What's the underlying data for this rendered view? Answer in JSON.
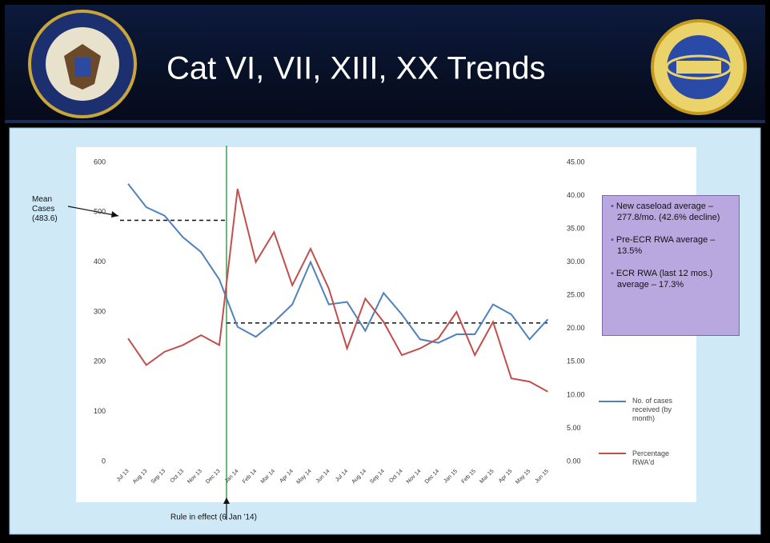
{
  "chart_data": {
    "type": "line",
    "title": "Cat VI, VII, XIII, XX Trends",
    "categories": [
      "Jul 13",
      "Aug 13",
      "Sep 13",
      "Oct 13",
      "Nov 13",
      "Dec 13",
      "Jan 14",
      "Feb 14",
      "Mar 14",
      "Apr 14",
      "May 14",
      "Jun 14",
      "Jul 14",
      "Aug 14",
      "Sep 14",
      "Oct 14",
      "Nov 14",
      "Dec 14",
      "Jan 15",
      "Feb 15",
      "Mar 15",
      "Apr 15",
      "May 15",
      "Jun 15"
    ],
    "series": [
      {
        "name": "No. of cases received (by month)",
        "color": "#4f81bd",
        "values": [
          557,
          510,
          493,
          450,
          420,
          365,
          270,
          250,
          280,
          315,
          400,
          315,
          320,
          262,
          338,
          295,
          245,
          238,
          255,
          255,
          315,
          295,
          245,
          285
        ]
      },
      {
        "name": "Percentage RWA'd",
        "color": "#c0504d",
        "axis": "y2",
        "values": [
          18.5,
          14.5,
          16.5,
          17.5,
          19,
          17.5,
          41,
          30,
          34.5,
          26.5,
          32,
          26,
          17,
          24.5,
          21,
          16,
          17,
          18.5,
          22.5,
          16,
          21,
          12.5,
          12,
          10.5
        ]
      }
    ],
    "ylim": [
      0,
      600
    ],
    "yticks": [
      0,
      100,
      200,
      300,
      400,
      500,
      600
    ],
    "y2lim": [
      0,
      45
    ],
    "y2ticks": [
      {
        "value": 0,
        "label": "0.00"
      },
      {
        "value": 5,
        "label": "5.00"
      },
      {
        "value": 10,
        "label": "10.00"
      },
      {
        "value": 15,
        "label": "15.00"
      },
      {
        "value": 20,
        "label": "20.00"
      },
      {
        "value": 25,
        "label": "25.00"
      },
      {
        "value": 30,
        "label": "30.00"
      },
      {
        "value": 35,
        "label": "35.00"
      },
      {
        "value": 40,
        "label": "40.00"
      },
      {
        "value": 45,
        "label": "45.00"
      }
    ],
    "reference_lines": [
      483.6,
      277.8
    ],
    "annotations": {
      "mean": "Mean Cases (483.6)",
      "rule": "Rule in effect (6 Jan '14)",
      "notes": [
        "New caseload average – 277.8/mo. (42.6% decline)",
        "Pre-ECR RWA average – 13.5%",
        "ECR RWA (last 12 mos.) average – 17.3%"
      ]
    }
  }
}
